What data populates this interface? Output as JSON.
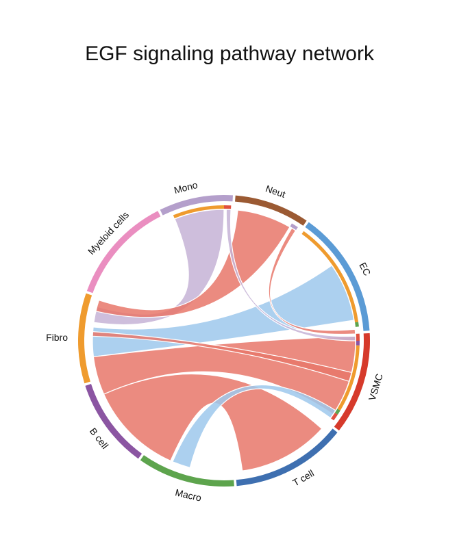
{
  "chart_data": {
    "type": "chord",
    "title": "EGF signaling pathway network",
    "sectors": [
      {
        "name": "Mono",
        "color": "#B49FCB",
        "start": -26.0,
        "end": 3.5,
        "label_angle": -14.0
      },
      {
        "name": "Neut",
        "color": "#9B5A33",
        "start": 4.5,
        "end": 34.5,
        "label_angle": 19.0
      },
      {
        "name": "EC",
        "color": "#5B9BD5",
        "start": 35.5,
        "end": 86.0,
        "label_angle": 63.0
      },
      {
        "name": "VSMC",
        "color": "#D63A2B",
        "start": 87.0,
        "end": 128.0,
        "label_angle": 107.0
      },
      {
        "name": "T cell",
        "color": "#3E6FB0",
        "start": 129.0,
        "end": 175.0,
        "label_angle": 150.0
      },
      {
        "name": "Macro",
        "color": "#5DA44D",
        "start": 176.0,
        "end": 215.0,
        "label_angle": 193.0
      },
      {
        "name": "B cell",
        "color": "#8B55A2",
        "start": 216.0,
        "end": 252.0,
        "label_angle": 232.0
      },
      {
        "name": "Fibro",
        "color": "#EF9B2E",
        "start": 253.0,
        "end": 289.0,
        "label_angle": 271.0
      },
      {
        "name": "Myeloid cells",
        "color": "#EA8EC0",
        "start": 290.0,
        "end": 333.0,
        "label_angle": 313.0
      }
    ],
    "links": [
      {
        "source": "Fibro",
        "target": "Mono",
        "color": "#C5B3D6",
        "from": [
          278,
          285
        ],
        "to": [
          -22,
          0
        ]
      },
      {
        "source": "Fibro",
        "target": "EC",
        "color": "#9EC8EC",
        "from": [
          263,
          276
        ],
        "to": [
          55,
          81
        ]
      },
      {
        "source": "Fibro",
        "target": "Neut",
        "color": "#E8776A",
        "from": [
          283,
          288
        ],
        "to": [
          6,
          30
        ]
      },
      {
        "source": "Fibro",
        "target": "VSMC",
        "color": "#E8776A",
        "from": [
          246,
          263
        ],
        "to": [
          88,
          124
        ]
      },
      {
        "source": "Fibro",
        "target": "T cell",
        "color": "#E8776A",
        "from": [
          204,
          246
        ],
        "to": [
          132,
          172
        ]
      },
      {
        "source": "Fibro",
        "target": "Macro",
        "color": "#9EC8EC",
        "from": [
          195,
          203
        ],
        "to": [
          122,
          126
        ]
      },
      {
        "source": "VSMC",
        "target": "Mono",
        "color": "#C5B3D6",
        "from": [
          88,
          90
        ],
        "to": [
          1,
          3
        ]
      },
      {
        "source": "VSMC",
        "target": "Neut",
        "color": "#E8776A",
        "from": [
          85,
          87
        ],
        "to": [
          31,
          33
        ]
      },
      {
        "source": "VSMC",
        "target": "Fibro",
        "color": "#E8776A",
        "from": [
          104,
          108
        ],
        "to": [
          272,
          274
        ]
      }
    ],
    "inner_tracks": [
      {
        "sector": "Mono",
        "color": "#EF9B2E",
        "start": -22,
        "end": 0
      },
      {
        "sector": "Mono",
        "color": "#E05040",
        "start": 0,
        "end": 3
      },
      {
        "sector": "Neut",
        "color": "#B49FCB",
        "start": 30,
        "end": 33
      },
      {
        "sector": "EC",
        "color": "#EF9B2E",
        "start": 36,
        "end": 82
      },
      {
        "sector": "EC",
        "color": "#5DA44D",
        "start": 82,
        "end": 84
      },
      {
        "sector": "VSMC",
        "color": "#E05040",
        "start": 87,
        "end": 90
      },
      {
        "sector": "VSMC",
        "color": "#8B55A2",
        "start": 90,
        "end": 92
      },
      {
        "sector": "VSMC",
        "color": "#EF9B2E",
        "start": 92,
        "end": 121
      },
      {
        "sector": "VSMC",
        "color": "#5DA44D",
        "start": 121,
        "end": 123
      },
      {
        "sector": "VSMC",
        "color": "#E05040",
        "start": 123,
        "end": 126
      }
    ]
  }
}
